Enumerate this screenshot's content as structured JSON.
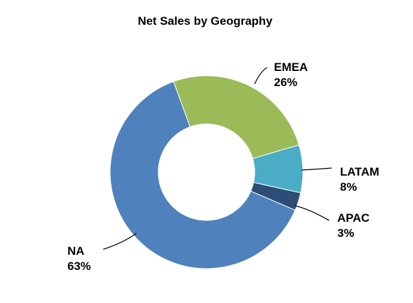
{
  "chart_data": {
    "type": "pie",
    "variant": "donut",
    "title": "Net Sales by Geography",
    "legend": "none",
    "slices": [
      {
        "name": "EMEA",
        "value": 26,
        "label": "26%",
        "color": "#9BBB59"
      },
      {
        "name": "LATAM",
        "value": 8,
        "label": "8%",
        "color": "#4BACC6"
      },
      {
        "name": "APAC",
        "value": 3,
        "label": "3%",
        "color": "#2C4D75"
      },
      {
        "name": "NA",
        "value": 63,
        "label": "63%",
        "color": "#4F81BD"
      }
    ]
  }
}
